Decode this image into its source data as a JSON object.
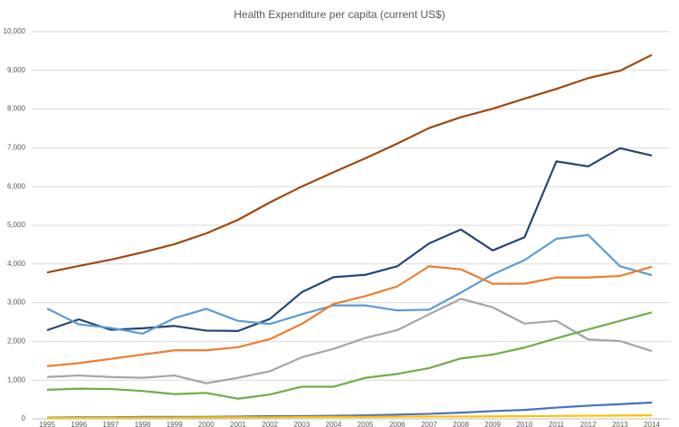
{
  "chart_data": {
    "type": "line",
    "title": "Health Expenditure per capita (current US$)",
    "categories": [
      "1995",
      "1996",
      "1997",
      "1998",
      "1999",
      "2000",
      "2001",
      "2002",
      "2003",
      "2004",
      "2005",
      "2006",
      "2007",
      "2008",
      "2009",
      "2010",
      "2011",
      "2012",
      "2013",
      "2014"
    ],
    "series": [
      {
        "color": "#9e480e",
        "values": [
          3780,
          3950,
          4110,
          4300,
          4510,
          4790,
          5140,
          5590,
          6000,
          6370,
          6730,
          7110,
          7510,
          7790,
          8010,
          8270,
          8520,
          8800,
          8990,
          9400
        ]
      },
      {
        "color": "#264478",
        "values": [
          2290,
          2570,
          2300,
          2340,
          2400,
          2280,
          2270,
          2580,
          3270,
          3660,
          3720,
          3940,
          4530,
          4890,
          4350,
          4690,
          6650,
          6520,
          6990,
          6800
        ]
      },
      {
        "color": "#5b9bd5",
        "values": [
          2850,
          2440,
          2350,
          2200,
          2600,
          2840,
          2530,
          2450,
          2700,
          2930,
          2930,
          2800,
          2820,
          3260,
          3730,
          4100,
          4650,
          4750,
          3940,
          3710
        ]
      },
      {
        "color": "#ed7d31",
        "values": [
          1360,
          1440,
          1550,
          1660,
          1770,
          1770,
          1850,
          2060,
          2450,
          2970,
          3170,
          3420,
          3940,
          3860,
          3490,
          3490,
          3650,
          3650,
          3690,
          3930
        ]
      },
      {
        "color": "#a5a5a5",
        "values": [
          1080,
          1120,
          1080,
          1060,
          1120,
          920,
          1060,
          1230,
          1590,
          1810,
          2090,
          2290,
          2700,
          3100,
          2880,
          2460,
          2530,
          2050,
          2010,
          1750
        ]
      },
      {
        "color": "#70ad47",
        "values": [
          750,
          780,
          770,
          720,
          640,
          670,
          520,
          630,
          830,
          830,
          1060,
          1160,
          1310,
          1560,
          1660,
          1840,
          2080,
          2310,
          2530,
          2750
        ]
      },
      {
        "color": "#4472c4",
        "values": [
          30,
          40,
          40,
          50,
          50,
          50,
          60,
          70,
          70,
          80,
          90,
          110,
          130,
          160,
          200,
          230,
          290,
          340,
          380,
          420
        ]
      },
      {
        "color": "#ffc000",
        "values": [
          20,
          20,
          25,
          30,
          30,
          35,
          40,
          40,
          45,
          50,
          50,
          55,
          60,
          60,
          65,
          70,
          75,
          80,
          85,
          90
        ]
      }
    ],
    "ylim": [
      0,
      10000
    ],
    "yticks": [
      0,
      {
        "value": 1000,
        "label": "1,000"
      },
      {
        "value": 2000,
        "label": "2,000"
      },
      {
        "value": 3000,
        "label": "3,000"
      },
      {
        "value": 4000,
        "label": "4,000"
      },
      {
        "value": 5000,
        "label": "5,000"
      },
      {
        "value": 6000,
        "label": "6,000"
      },
      {
        "value": 7000,
        "label": "7,000"
      },
      {
        "value": 8000,
        "label": "8,000"
      },
      {
        "value": 9000,
        "label": "9,000"
      },
      {
        "value": 10000,
        "label": "10,000"
      }
    ],
    "grid": true
  }
}
